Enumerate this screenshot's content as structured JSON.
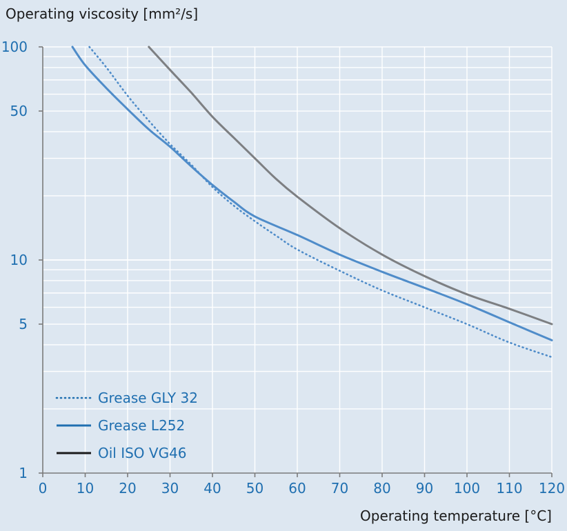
{
  "chart_data": {
    "type": "line",
    "ylabel": "Operating viscosity [mm²/s]",
    "xlabel": "Operating temperature [°C]",
    "xlim": [
      0,
      120
    ],
    "ylim": [
      1,
      100
    ],
    "yscale": "log",
    "grid": true,
    "legend_position": "bottom-left",
    "x_ticks": [
      0,
      10,
      20,
      30,
      40,
      50,
      60,
      70,
      80,
      90,
      100,
      110,
      120
    ],
    "y_ticks": [
      1,
      5,
      10,
      50,
      100
    ],
    "series": [
      {
        "name": "Grease GLY 32",
        "style": "dotted",
        "color": "#4f8cc9",
        "x": [
          11,
          15,
          20,
          25,
          30,
          35,
          40,
          45,
          50,
          55,
          60,
          70,
          80,
          90,
          100,
          110,
          120
        ],
        "y": [
          100,
          80,
          59,
          45,
          35,
          28,
          22,
          18,
          15.2,
          13,
          11.2,
          8.9,
          7.2,
          6.0,
          5.0,
          4.1,
          3.5
        ]
      },
      {
        "name": "Grease L252",
        "style": "solid",
        "color": "#4f8cc9",
        "x": [
          7,
          10,
          15,
          20,
          25,
          30,
          35,
          40,
          45,
          50,
          60,
          70,
          80,
          90,
          100,
          110,
          120
        ],
        "y": [
          100,
          82,
          64,
          51,
          41,
          34,
          27.5,
          22.5,
          18.8,
          16,
          13.1,
          10.6,
          8.8,
          7.4,
          6.2,
          5.1,
          4.2
        ]
      },
      {
        "name": "Oil ISO VG46",
        "style": "solid",
        "color": "#7d7f82",
        "x": [
          25,
          30,
          35,
          40,
          45,
          50,
          55,
          60,
          70,
          80,
          90,
          100,
          110,
          120
        ],
        "y": [
          100,
          78,
          61,
          47,
          37.5,
          30,
          24,
          19.8,
          14.1,
          10.6,
          8.4,
          6.9,
          5.9,
          5.0
        ]
      }
    ]
  }
}
